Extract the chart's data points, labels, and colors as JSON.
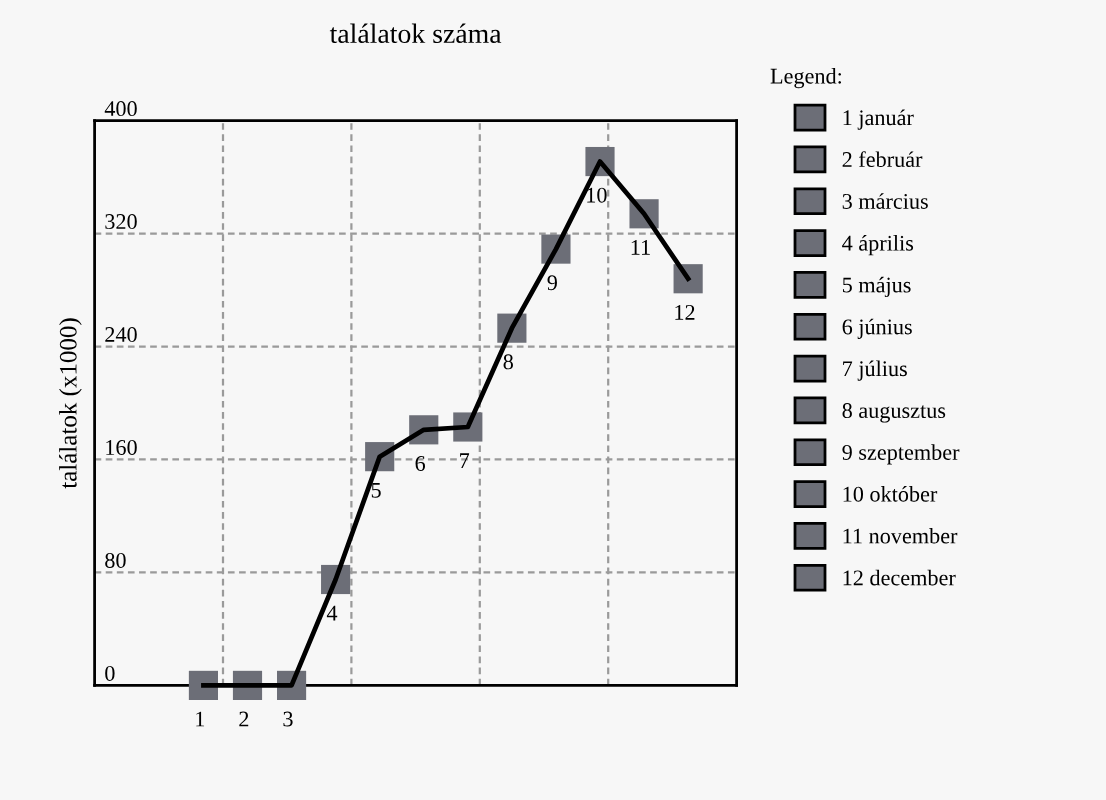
{
  "chart_data": {
    "type": "line",
    "title": "találatok száma",
    "ylabel": "találatok (x1000)",
    "legend_title": "Legend:",
    "categories": [
      "1",
      "2",
      "3",
      "4",
      "5",
      "6",
      "7",
      "8",
      "9",
      "10",
      "11",
      "12"
    ],
    "series": [
      {
        "color": "#000000",
        "marker": "none",
        "values": [
          0,
          0,
          0,
          75,
          162,
          181,
          183,
          253,
          309,
          371,
          334,
          288
        ]
      },
      {
        "type": "scatter",
        "name": "1 január",
        "color": "#6c6e77",
        "values": [
          0,
          null,
          null,
          null,
          null,
          null,
          null,
          null,
          null,
          null,
          null,
          null
        ]
      },
      {
        "type": "scatter",
        "name": "2 február",
        "color": "#6c6e77",
        "values": [
          null,
          0,
          null,
          null,
          null,
          null,
          null,
          null,
          null,
          null,
          null,
          null
        ]
      },
      {
        "type": "scatter",
        "name": "3 március",
        "color": "#6c6e77",
        "values": [
          null,
          null,
          0,
          null,
          null,
          null,
          null,
          null,
          null,
          null,
          null,
          null
        ]
      },
      {
        "type": "scatter",
        "name": "4 április",
        "color": "#6c6e77",
        "values": [
          null,
          null,
          null,
          75,
          null,
          null,
          null,
          null,
          null,
          null,
          null,
          null
        ]
      },
      {
        "type": "scatter",
        "name": "5 május",
        "color": "#6c6e77",
        "values": [
          null,
          null,
          null,
          null,
          162,
          null,
          null,
          null,
          null,
          null,
          null,
          null
        ]
      },
      {
        "type": "scatter",
        "name": "6 június",
        "color": "#6c6e77",
        "values": [
          null,
          null,
          null,
          null,
          null,
          181,
          null,
          null,
          null,
          null,
          null,
          null
        ]
      },
      {
        "type": "scatter",
        "name": "7 július",
        "color": "#6c6e77",
        "values": [
          null,
          null,
          null,
          null,
          null,
          null,
          183,
          null,
          null,
          null,
          null,
          null
        ]
      },
      {
        "type": "scatter",
        "name": "8 augusztus",
        "color": "#6c6e77",
        "values": [
          null,
          null,
          null,
          null,
          null,
          null,
          null,
          253,
          null,
          null,
          null,
          null
        ]
      },
      {
        "type": "scatter",
        "name": "9 szeptember",
        "color": "#6c6e77",
        "values": [
          null,
          null,
          null,
          null,
          null,
          null,
          null,
          null,
          309,
          null,
          null,
          null
        ]
      },
      {
        "type": "scatter",
        "name": "10 október",
        "color": "#6c6e77",
        "values": [
          null,
          null,
          null,
          null,
          null,
          null,
          null,
          null,
          null,
          371,
          null,
          null
        ]
      },
      {
        "type": "scatter",
        "name": "11 november",
        "color": "#6c6e77",
        "values": [
          null,
          null,
          null,
          null,
          null,
          null,
          null,
          null,
          null,
          null,
          334,
          null
        ]
      },
      {
        "type": "scatter",
        "name": "12 december",
        "color": "#6c6e77",
        "values": [
          null,
          null,
          null,
          null,
          null,
          null,
          null,
          null,
          null,
          null,
          null,
          288
        ]
      }
    ],
    "ylim": [
      0,
      400
    ],
    "yticks": [
      0,
      80,
      160,
      240,
      320,
      400
    ],
    "grid": true,
    "legend": "right",
    "marker": "square",
    "line_style": "solid"
  }
}
